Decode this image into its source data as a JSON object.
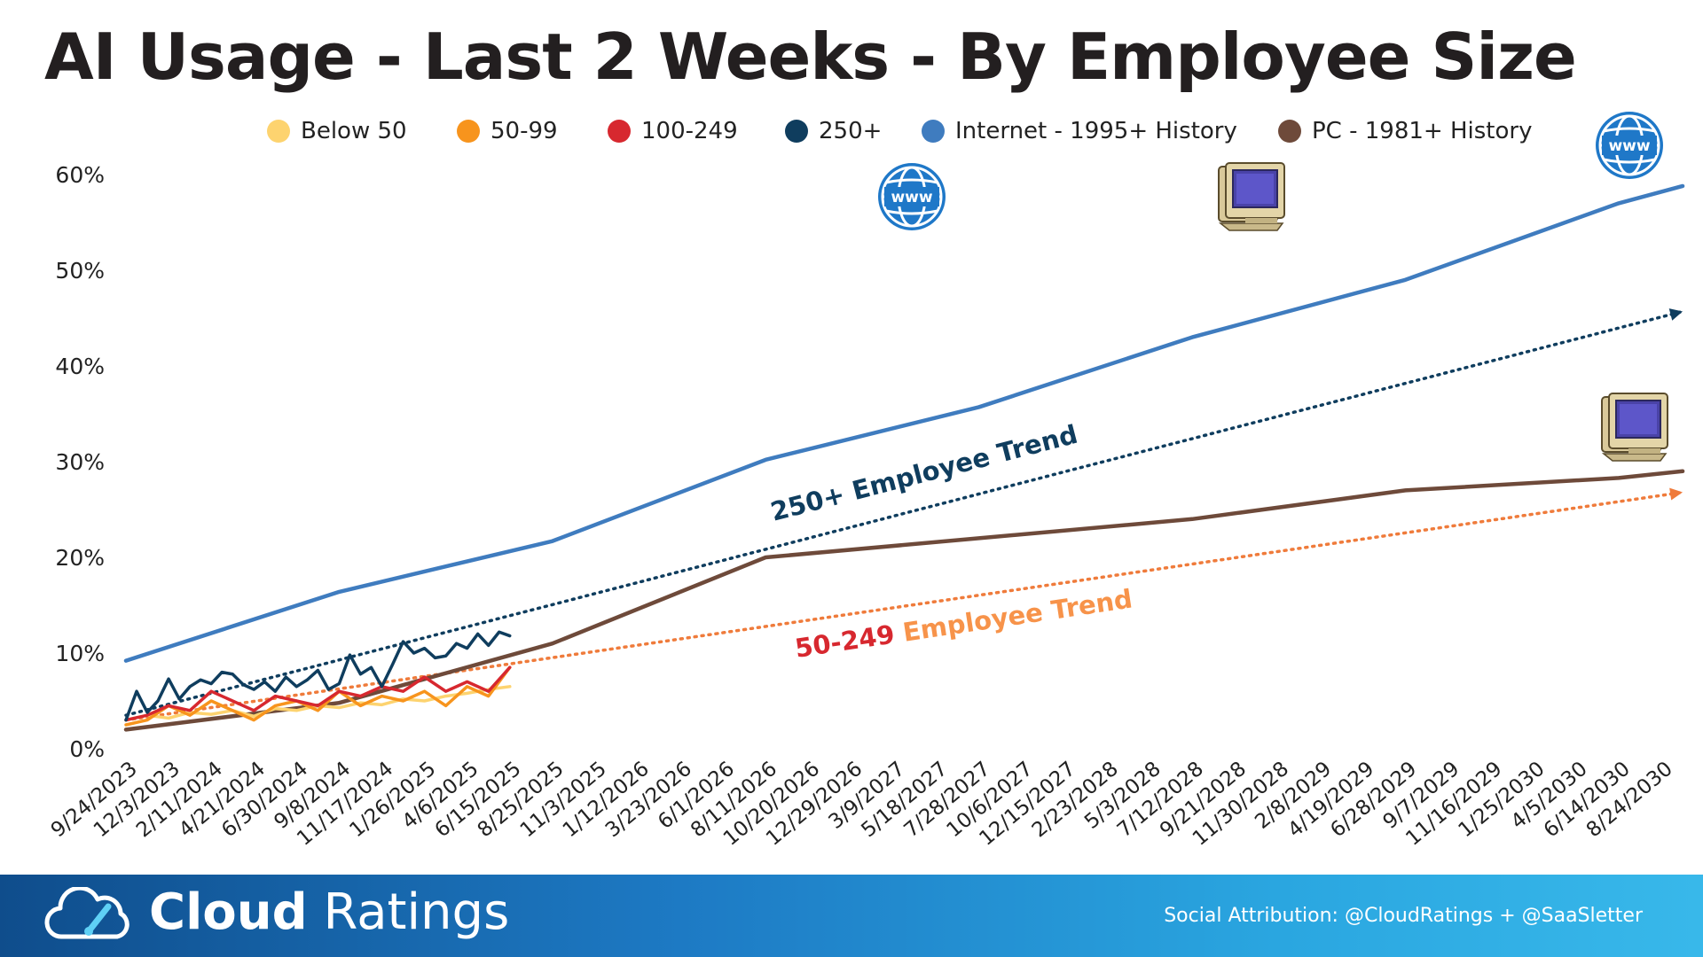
{
  "page": {
    "title": "AI Usage - Last 2 Weeks - By Employee Size"
  },
  "footer": {
    "brand_bold": "Cloud",
    "brand_light": "Ratings",
    "logo_icon": "cloud-gauge-icon",
    "social_attribution": "Social Attribution: @CloudRatings + @SaaSletter"
  },
  "chart_data": {
    "type": "line",
    "title": "AI Usage - Last 2 Weeks - By Employee Size",
    "xlabel": "",
    "ylabel": "",
    "ylim": [
      0,
      0.6
    ],
    "yticks": [
      "0%",
      "10%",
      "20%",
      "30%",
      "40%",
      "50%",
      "60%"
    ],
    "grid": false,
    "legend_position": "top",
    "x_tick_labels": [
      "9/24/2023",
      "12/3/2023",
      "2/11/2024",
      "4/21/2024",
      "6/30/2024",
      "9/8/2024",
      "11/17/2024",
      "1/26/2025",
      "4/6/2025",
      "6/15/2025",
      "8/25/2025",
      "11/3/2025",
      "1/12/2026",
      "3/23/2026",
      "6/1/2026",
      "8/11/2026",
      "10/20/2026",
      "12/29/2026",
      "3/9/2027",
      "5/18/2027",
      "7/28/2027",
      "10/6/2027",
      "12/15/2027",
      "2/23/2028",
      "5/3/2028",
      "7/12/2028",
      "9/21/2028",
      "11/30/2028",
      "2/8/2029",
      "4/19/2029",
      "6/28/2029",
      "9/7/2029",
      "11/16/2029",
      "1/25/2030",
      "4/5/2030",
      "6/14/2030",
      "8/24/2030"
    ],
    "series": [
      {
        "name": "Below 50",
        "color": "#fdd36f",
        "x": [
          0,
          0.5,
          1,
          1.5,
          2,
          2.5,
          3,
          3.5,
          4,
          4.5,
          5,
          5.5,
          6,
          6.5,
          7,
          7.5,
          8,
          8.5,
          9
        ],
        "values": [
          0.03,
          0.035,
          0.032,
          0.038,
          0.036,
          0.04,
          0.034,
          0.042,
          0.04,
          0.045,
          0.043,
          0.048,
          0.046,
          0.052,
          0.05,
          0.055,
          0.058,
          0.062,
          0.065
        ]
      },
      {
        "name": "50-99",
        "color": "#f7941d",
        "x": [
          0,
          0.5,
          1,
          1.5,
          2,
          2.5,
          3,
          3.5,
          4,
          4.5,
          5,
          5.5,
          6,
          6.5,
          7,
          7.5,
          8,
          8.5,
          9
        ],
        "values": [
          0.025,
          0.03,
          0.045,
          0.035,
          0.05,
          0.04,
          0.03,
          0.045,
          0.05,
          0.04,
          0.06,
          0.045,
          0.055,
          0.05,
          0.06,
          0.045,
          0.065,
          0.055,
          0.085
        ]
      },
      {
        "name": "100-249",
        "color": "#d7282f",
        "x": [
          0,
          0.5,
          1,
          1.5,
          2,
          2.5,
          3,
          3.5,
          4,
          4.5,
          5,
          5.5,
          6,
          6.5,
          7,
          7.5,
          8,
          8.5,
          9
        ],
        "values": [
          0.03,
          0.035,
          0.045,
          0.04,
          0.06,
          0.05,
          0.04,
          0.055,
          0.05,
          0.045,
          0.06,
          0.055,
          0.065,
          0.06,
          0.075,
          0.06,
          0.07,
          0.06,
          0.085
        ]
      },
      {
        "name": "250+",
        "color": "#0f3d5e",
        "x": [
          0,
          0.25,
          0.5,
          0.75,
          1,
          1.25,
          1.5,
          1.75,
          2,
          2.25,
          2.5,
          2.75,
          3,
          3.25,
          3.5,
          3.75,
          4,
          4.25,
          4.5,
          4.75,
          5,
          5.25,
          5.5,
          5.75,
          6,
          6.25,
          6.5,
          6.75,
          7,
          7.25,
          7.5,
          7.75,
          8,
          8.25,
          8.5,
          8.75,
          9
        ],
        "values": [
          0.03,
          0.06,
          0.038,
          0.05,
          0.073,
          0.052,
          0.065,
          0.072,
          0.068,
          0.08,
          0.078,
          0.067,
          0.062,
          0.07,
          0.06,
          0.075,
          0.065,
          0.072,
          0.082,
          0.062,
          0.068,
          0.098,
          0.078,
          0.085,
          0.065,
          0.088,
          0.112,
          0.1,
          0.105,
          0.095,
          0.097,
          0.11,
          0.105,
          0.12,
          0.108,
          0.122,
          0.118
        ]
      },
      {
        "name": "Internet - 1995+ History",
        "color": "#3f7cbf",
        "x": [
          0,
          5,
          10,
          15,
          20,
          25,
          30,
          35,
          36.5
        ],
        "values": [
          0.092,
          0.164,
          0.217,
          0.302,
          0.357,
          0.43,
          0.49,
          0.57,
          0.588
        ]
      },
      {
        "name": "PC - 1981+ History",
        "color": "#6e4a3a",
        "x": [
          0,
          5,
          10,
          15,
          20,
          25,
          30,
          35,
          36.5
        ],
        "values": [
          0.02,
          0.048,
          0.11,
          0.2,
          0.22,
          0.24,
          0.27,
          0.283,
          0.29
        ]
      }
    ],
    "trend_lines": [
      {
        "name": "250+ Employee Trend",
        "color": "#0f3d5e",
        "x": [
          0,
          36.5
        ],
        "values": [
          0.035,
          0.457
        ]
      },
      {
        "name": "50-249 Employee Trend",
        "color": "#ef7b3b",
        "x": [
          0,
          36.5
        ],
        "values": [
          0.03,
          0.268
        ]
      }
    ],
    "annotations": [
      {
        "text": "250+ Employee Trend",
        "color": "#0f3d5e"
      },
      {
        "prefix": "50-249",
        "prefix_color": "#d7282f",
        "text": " Employee Trend",
        "color": "#f7934a"
      }
    ],
    "icons": [
      "globe-www-icon",
      "computer-icon"
    ]
  }
}
